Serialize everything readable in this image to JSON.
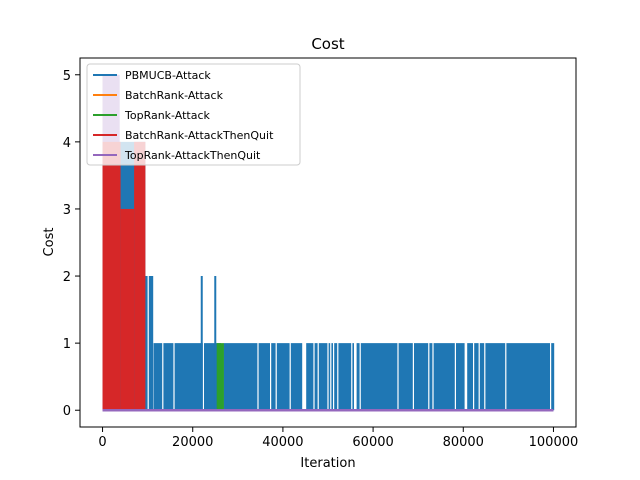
{
  "chart_data": {
    "type": "line",
    "title": "Cost",
    "xlabel": "Iteration",
    "ylabel": "Cost",
    "xlim": [
      -5000,
      105000
    ],
    "ylim": [
      -0.25,
      5.25
    ],
    "xticks": [
      0,
      20000,
      40000,
      60000,
      80000,
      100000
    ],
    "xtick_labels": [
      "0",
      "20000",
      "40000",
      "60000",
      "80000",
      "100000"
    ],
    "yticks": [
      0,
      1,
      2,
      3,
      4,
      5
    ],
    "ytick_labels": [
      "0",
      "1",
      "2",
      "3",
      "4",
      "5"
    ],
    "grid": false,
    "legend_position": "upper-left",
    "series": [
      {
        "name": "PBMUCB-Attack",
        "color": "#1f77b4",
        "description_segments": [
          {
            "x_start": 0,
            "x_end": 1500,
            "y_min": 0,
            "y_max": 5
          },
          {
            "x_start": 1500,
            "x_end": 9500,
            "y_min": 0,
            "y_max": 4
          },
          {
            "x_start": 9500,
            "x_end": 11500,
            "y_min": 0,
            "y_max": 2
          },
          {
            "x_start": 11500,
            "x_end": 100000,
            "y_min": 0,
            "y_max": 1
          }
        ],
        "spikes": [
          {
            "x": 22000,
            "y": 2
          },
          {
            "x": 25000,
            "y": 2
          }
        ]
      },
      {
        "name": "BatchRank-Attack",
        "color": "#ff7f0e",
        "description_segments": [
          {
            "x_start": 0,
            "x_end": 2500,
            "y_min": 0,
            "y_max": 5
          }
        ]
      },
      {
        "name": "TopRank-Attack",
        "color": "#2ca02c",
        "description_segments": [
          {
            "x_start": 25500,
            "x_end": 27000,
            "y_min": 0,
            "y_max": 1
          }
        ]
      },
      {
        "name": "BatchRank-AttackThenQuit",
        "color": "#d62728",
        "description_segments": [
          {
            "x_start": 0,
            "x_end": 4000,
            "y_min": 0,
            "y_max": 4
          },
          {
            "x_start": 4000,
            "x_end": 7000,
            "y_min": 0,
            "y_max": 3
          },
          {
            "x_start": 7000,
            "x_end": 9500,
            "y_min": 0,
            "y_max": 4
          }
        ]
      },
      {
        "name": "TopRank-AttackThenQuit",
        "color": "#9467bd",
        "description_segments": [
          {
            "x_start": 0,
            "x_end": 3800,
            "y_min": 0,
            "y_max": 5
          }
        ]
      }
    ]
  }
}
